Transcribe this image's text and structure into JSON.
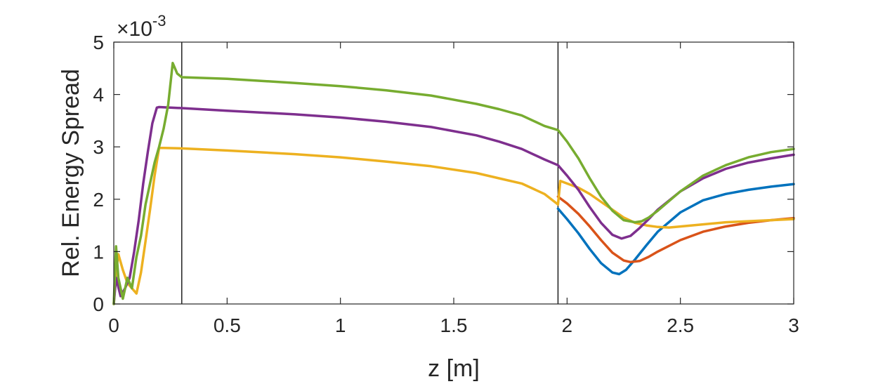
{
  "chart_data": {
    "type": "line",
    "title": "",
    "xlabel": "z [m]",
    "ylabel": "Rel. Energy Spread",
    "y_multiplier_label": "×10",
    "y_multiplier_exponent": "-3",
    "xlim": [
      0,
      3
    ],
    "ylim": [
      0,
      5
    ],
    "x_ticks": [
      0,
      0.5,
      1,
      1.5,
      2,
      2.5,
      3
    ],
    "x_tick_labels": [
      "0",
      "0.5",
      "1",
      "1.5",
      "2",
      "2.5",
      "3"
    ],
    "y_ticks": [
      0,
      1,
      2,
      3,
      4,
      5
    ],
    "y_tick_labels": [
      "0",
      "1",
      "2",
      "3",
      "4",
      "5"
    ],
    "grid": false,
    "legend": "none",
    "vertical_markers": [
      0.3,
      1.96
    ],
    "series": [
      {
        "color": "#0072BD",
        "x": [
          1.96,
          2.0,
          2.05,
          2.1,
          2.15,
          2.2,
          2.23,
          2.26,
          2.3,
          2.35,
          2.4,
          2.5,
          2.6,
          2.7,
          2.8,
          2.9,
          3.0
        ],
        "y": [
          1.82,
          1.62,
          1.35,
          1.05,
          0.78,
          0.6,
          0.57,
          0.65,
          0.85,
          1.12,
          1.38,
          1.75,
          1.98,
          2.1,
          2.18,
          2.24,
          2.29
        ]
      },
      {
        "color": "#D95319",
        "x": [
          1.96,
          2.0,
          2.05,
          2.1,
          2.15,
          2.2,
          2.25,
          2.28,
          2.32,
          2.36,
          2.4,
          2.5,
          2.6,
          2.7,
          2.8,
          2.9,
          3.0
        ],
        "y": [
          2.05,
          1.92,
          1.72,
          1.48,
          1.22,
          0.98,
          0.83,
          0.8,
          0.82,
          0.9,
          1.0,
          1.22,
          1.38,
          1.48,
          1.55,
          1.6,
          1.64
        ]
      },
      {
        "color": "#EDB120",
        "x": [
          0.0,
          0.01,
          0.02,
          0.04,
          0.06,
          0.08,
          0.1,
          0.12,
          0.14,
          0.16,
          0.18,
          0.2,
          0.22,
          0.3,
          0.5,
          0.8,
          1.0,
          1.2,
          1.4,
          1.6,
          1.7,
          1.8,
          1.9,
          1.96,
          1.97,
          2.0,
          2.05,
          2.1,
          2.15,
          2.2,
          2.25,
          2.3,
          2.35,
          2.4,
          2.45,
          2.5,
          2.6,
          2.7,
          2.8,
          2.9,
          3.0
        ],
        "y": [
          0.0,
          0.6,
          0.95,
          0.65,
          0.4,
          0.3,
          0.2,
          0.6,
          1.2,
          1.8,
          2.45,
          2.98,
          2.98,
          2.97,
          2.93,
          2.86,
          2.8,
          2.72,
          2.63,
          2.5,
          2.4,
          2.3,
          2.1,
          1.9,
          2.35,
          2.3,
          2.22,
          2.1,
          1.95,
          1.8,
          1.65,
          1.55,
          1.5,
          1.47,
          1.46,
          1.48,
          1.52,
          1.56,
          1.58,
          1.6,
          1.62
        ]
      },
      {
        "color": "#7E2F8E",
        "x": [
          0.0,
          0.01,
          0.03,
          0.05,
          0.07,
          0.09,
          0.11,
          0.13,
          0.15,
          0.17,
          0.19,
          0.2,
          0.3,
          0.5,
          0.8,
          1.0,
          1.2,
          1.4,
          1.6,
          1.7,
          1.8,
          1.9,
          1.96,
          2.0,
          2.05,
          2.1,
          2.15,
          2.2,
          2.24,
          2.28,
          2.32,
          2.36,
          2.4,
          2.5,
          2.6,
          2.7,
          2.8,
          2.9,
          3.0
        ],
        "y": [
          0.0,
          0.5,
          0.15,
          0.3,
          0.5,
          1.0,
          1.6,
          2.3,
          2.9,
          3.45,
          3.75,
          3.76,
          3.74,
          3.69,
          3.62,
          3.56,
          3.48,
          3.38,
          3.22,
          3.1,
          2.96,
          2.76,
          2.65,
          2.45,
          2.18,
          1.85,
          1.55,
          1.32,
          1.25,
          1.3,
          1.45,
          1.62,
          1.8,
          2.15,
          2.4,
          2.58,
          2.7,
          2.78,
          2.85
        ]
      },
      {
        "color": "#77AC30",
        "x": [
          0.0,
          0.01,
          0.02,
          0.04,
          0.06,
          0.08,
          0.1,
          0.12,
          0.14,
          0.16,
          0.18,
          0.2,
          0.22,
          0.24,
          0.26,
          0.28,
          0.3,
          0.5,
          0.8,
          1.0,
          1.2,
          1.4,
          1.6,
          1.7,
          1.8,
          1.9,
          1.96,
          2.0,
          2.05,
          2.1,
          2.15,
          2.2,
          2.25,
          2.3,
          2.33,
          2.36,
          2.4,
          2.5,
          2.6,
          2.7,
          2.8,
          2.9,
          3.0
        ],
        "y": [
          0.0,
          1.1,
          0.5,
          0.1,
          0.5,
          0.3,
          0.9,
          1.3,
          1.9,
          2.3,
          2.7,
          3.0,
          3.35,
          3.8,
          4.6,
          4.4,
          4.33,
          4.3,
          4.22,
          4.16,
          4.08,
          3.98,
          3.82,
          3.72,
          3.6,
          3.4,
          3.32,
          3.1,
          2.78,
          2.4,
          2.05,
          1.78,
          1.6,
          1.56,
          1.58,
          1.65,
          1.78,
          2.15,
          2.45,
          2.65,
          2.8,
          2.9,
          2.96
        ]
      }
    ]
  }
}
